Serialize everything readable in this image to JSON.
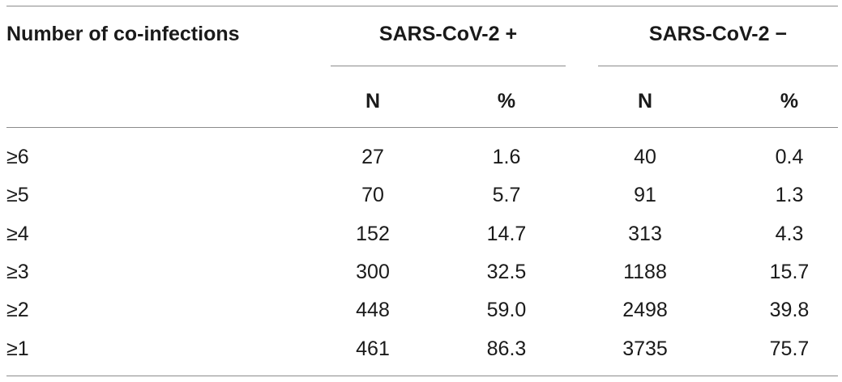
{
  "table": {
    "header": {
      "row_label": "Number of co-infections",
      "groups": [
        "SARS-CoV-2 +",
        "SARS-CoV-2 −"
      ],
      "subcolumns": [
        "N",
        "%",
        "N",
        "%"
      ]
    },
    "rows": [
      {
        "label": "≥6",
        "pos_n": "27",
        "pos_pct": "1.6",
        "neg_n": "40",
        "neg_pct": "0.4"
      },
      {
        "label": "≥5",
        "pos_n": "70",
        "pos_pct": "5.7",
        "neg_n": "91",
        "neg_pct": "1.3"
      },
      {
        "label": "≥4",
        "pos_n": "152",
        "pos_pct": "14.7",
        "neg_n": "313",
        "neg_pct": "4.3"
      },
      {
        "label": "≥3",
        "pos_n": "300",
        "pos_pct": "32.5",
        "neg_n": "1188",
        "neg_pct": "15.7"
      },
      {
        "label": "≥2",
        "pos_n": "448",
        "pos_pct": "59.0",
        "neg_n": "2498",
        "neg_pct": "39.8"
      },
      {
        "label": "≥1",
        "pos_n": "461",
        "pos_pct": "86.3",
        "neg_n": "3735",
        "neg_pct": "75.7"
      }
    ]
  }
}
